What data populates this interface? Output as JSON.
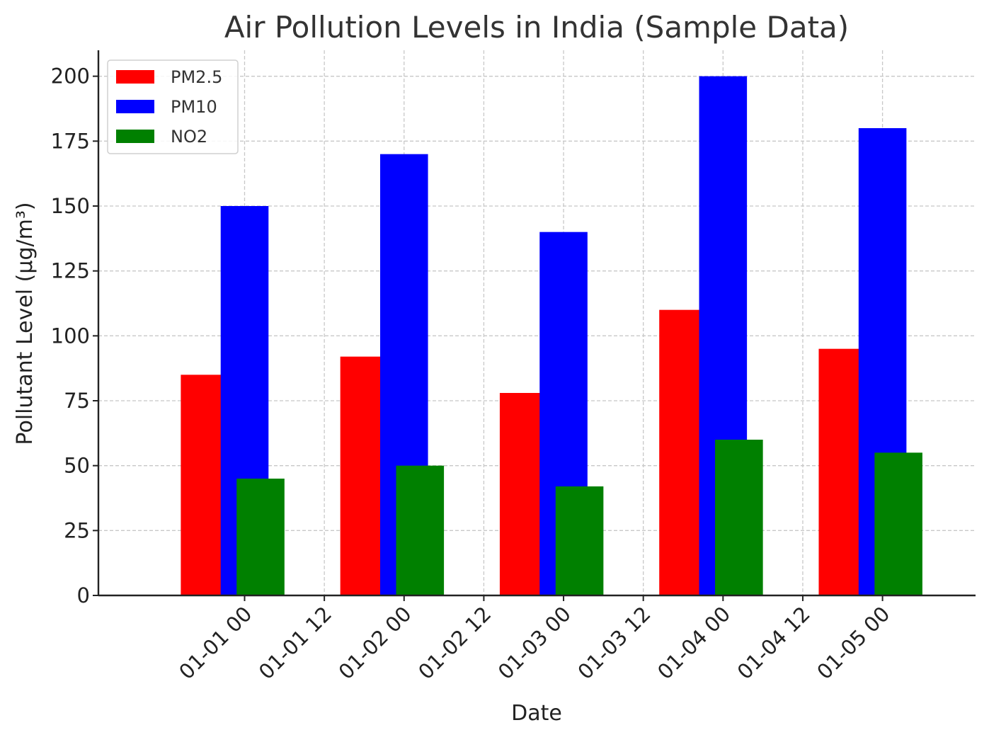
{
  "chart_data": {
    "type": "bar",
    "title": "Air Pollution Levels in India (Sample Data)",
    "xlabel": "Date",
    "ylabel": "Pollutant Level (µg/m³)",
    "ylim": [
      0,
      210
    ],
    "yticks": [
      0,
      25,
      50,
      75,
      100,
      125,
      150,
      175,
      200
    ],
    "xlim_hours": [
      -22,
      110
    ],
    "xticks": [
      {
        "hours": 0,
        "label": "01-01 00"
      },
      {
        "hours": 12,
        "label": "01-01 12"
      },
      {
        "hours": 24,
        "label": "01-02 00"
      },
      {
        "hours": 36,
        "label": "01-02 12"
      },
      {
        "hours": 48,
        "label": "01-03 00"
      },
      {
        "hours": 60,
        "label": "01-03 12"
      },
      {
        "hours": 72,
        "label": "01-04 00"
      },
      {
        "hours": 84,
        "label": "01-04 12"
      },
      {
        "hours": 96,
        "label": "01-05 00"
      }
    ],
    "categories": [
      "01-01",
      "01-02",
      "01-03",
      "01-04",
      "01-05"
    ],
    "grid": true,
    "legend_position": "top-left",
    "series": [
      {
        "name": "PM2.5",
        "color": "#ff0000",
        "values": [
          85,
          92,
          78,
          110,
          95
        ],
        "offset_hours": -6,
        "width_hours": 7.2
      },
      {
        "name": "PM10",
        "color": "#0000ff",
        "values": [
          150,
          170,
          140,
          200,
          180
        ],
        "offset_hours": 0,
        "width_hours": 7.2
      },
      {
        "name": "NO2",
        "color": "#008000",
        "values": [
          45,
          50,
          42,
          60,
          55
        ],
        "offset_hours": 2.4,
        "width_hours": 7.2
      }
    ]
  }
}
